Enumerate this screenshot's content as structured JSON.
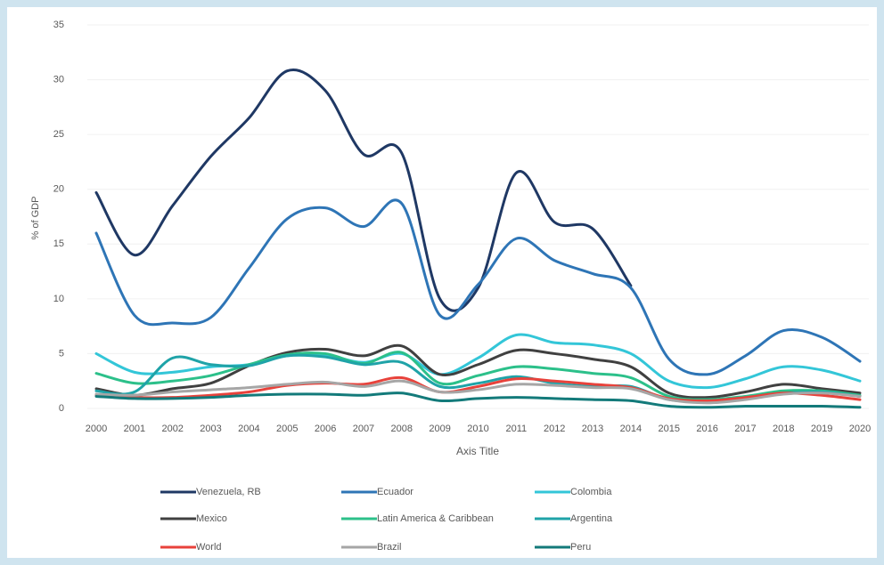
{
  "chart_data": {
    "type": "line",
    "y_label": "% of GDP",
    "x_label": "Axis Title",
    "categories": [
      "2000",
      "2001",
      "2002",
      "2003",
      "2004",
      "2005",
      "2006",
      "2007",
      "2008",
      "2009",
      "2010",
      "2011",
      "2012",
      "2013",
      "2014",
      "2015",
      "2016",
      "2017",
      "2018",
      "2019",
      "2020"
    ],
    "ylim": [
      0,
      35
    ],
    "yticks": [
      0,
      5,
      10,
      15,
      20,
      25,
      30,
      35
    ],
    "grid": true,
    "series": [
      {
        "name": "Venezuela, RB",
        "color": "#1f3864",
        "values": [
          19.7,
          14,
          18.5,
          23,
          26.5,
          30.8,
          29,
          23.2,
          23.3,
          10,
          11,
          21.5,
          17,
          16.4,
          11.2,
          null,
          null,
          null,
          null,
          null,
          null
        ]
      },
      {
        "name": "Ecuador",
        "color": "#2e75b6",
        "values": [
          16,
          8.5,
          7.8,
          8.3,
          12.8,
          17.3,
          18.3,
          16.6,
          18.7,
          8.5,
          11.3,
          15.5,
          13.5,
          12.3,
          11,
          4.5,
          3.1,
          4.8,
          7.1,
          6.5,
          4.3
        ]
      },
      {
        "name": "Colombia",
        "color": "#33c6d8",
        "values": [
          5,
          3.3,
          3.3,
          3.8,
          4.0,
          4.8,
          4.9,
          4.2,
          5.0,
          3.1,
          4.6,
          6.7,
          6.0,
          5.8,
          5.0,
          2.5,
          1.9,
          2.7,
          3.8,
          3.5,
          2.5
        ]
      },
      {
        "name": "Mexico",
        "color": "#404040",
        "values": [
          1.8,
          1.2,
          1.8,
          2.3,
          3.9,
          5.1,
          5.4,
          4.8,
          5.7,
          3.1,
          4.0,
          5.3,
          5.0,
          4.5,
          3.8,
          1.4,
          1.0,
          1.5,
          2.2,
          1.8,
          1.4
        ]
      },
      {
        "name": "Latin America & Caribbean",
        "color": "#2cc08a",
        "values": [
          3.2,
          2.3,
          2.5,
          3.0,
          4.0,
          4.9,
          5.0,
          4.1,
          5.1,
          2.3,
          3.0,
          3.8,
          3.6,
          3.2,
          2.8,
          1.1,
          0.8,
          1.1,
          1.6,
          1.6,
          1.2
        ]
      },
      {
        "name": "Argentina",
        "color": "#1fa3a8",
        "values": [
          1.6,
          1.5,
          4.6,
          4.0,
          3.9,
          4.8,
          4.7,
          4.0,
          4.2,
          2.0,
          2.3,
          2.9,
          2.3,
          2.0,
          2.0,
          0.8,
          0.7,
          1.0,
          1.4,
          1.5,
          1.1
        ]
      },
      {
        "name": "World",
        "color": "#e8423b",
        "values": [
          1.2,
          1.0,
          1.0,
          1.2,
          1.5,
          2.1,
          2.3,
          2.2,
          2.8,
          1.5,
          2.0,
          2.7,
          2.5,
          2.2,
          1.9,
          0.9,
          0.7,
          1.0,
          1.4,
          1.2,
          0.8
        ]
      },
      {
        "name": "Brazil",
        "color": "#a6a6a6",
        "values": [
          1.3,
          1.2,
          1.5,
          1.7,
          1.9,
          2.2,
          2.4,
          2.0,
          2.5,
          1.5,
          1.7,
          2.2,
          2.1,
          1.9,
          1.8,
          0.8,
          0.5,
          0.8,
          1.3,
          1.4,
          1.1
        ]
      },
      {
        "name": "Peru",
        "color": "#137a7a",
        "values": [
          1.1,
          0.9,
          0.9,
          1.0,
          1.2,
          1.3,
          1.3,
          1.2,
          1.4,
          0.7,
          0.9,
          1.0,
          0.9,
          0.8,
          0.7,
          0.2,
          0.1,
          0.2,
          0.2,
          0.2,
          0.1
        ]
      }
    ]
  }
}
